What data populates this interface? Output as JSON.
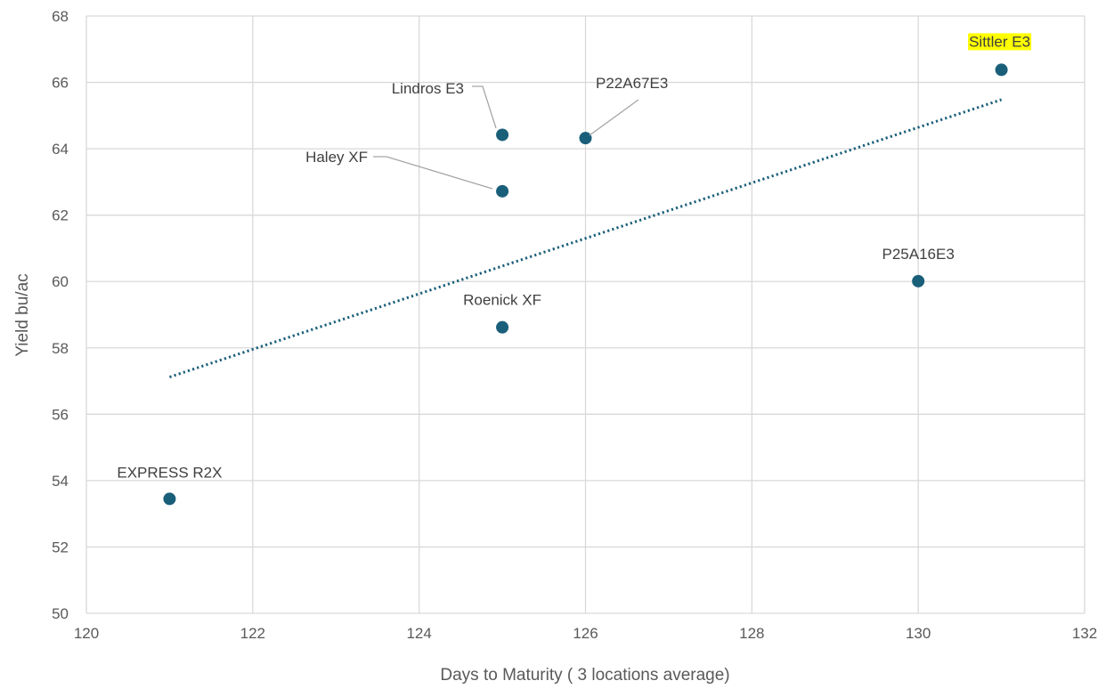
{
  "chart_data": {
    "type": "scatter",
    "title": "",
    "xlabel": "Days to Maturity ( 3 locations average)",
    "ylabel": "Yield bu/ac",
    "xlim": [
      120,
      132
    ],
    "ylim": [
      50,
      68
    ],
    "x_ticks": [
      "120",
      "122",
      "124",
      "126",
      "128",
      "130",
      "132"
    ],
    "y_ticks": [
      "50",
      "52",
      "54",
      "56",
      "58",
      "60",
      "62",
      "64",
      "66",
      "68"
    ],
    "grid": true,
    "series": [
      {
        "color": "#1a5f7a",
        "points": [
          {
            "label": "EXPRESS R2X",
            "x": 121,
            "y": 53.45
          },
          {
            "label": "Roenick XF",
            "x": 125,
            "y": 58.62
          },
          {
            "label": "Haley XF",
            "x": 125,
            "y": 62.72
          },
          {
            "label": "Lindros E3",
            "x": 125,
            "y": 64.42
          },
          {
            "label": "P22A67E3",
            "x": 126,
            "y": 64.32
          },
          {
            "label": "P25A16E3",
            "x": 130,
            "y": 60.01
          },
          {
            "label": "Sittler E3",
            "x": 131,
            "y": 66.38,
            "highlight": "#ffff00"
          }
        ]
      }
    ],
    "trendline": {
      "type": "linear",
      "style": "dotted",
      "color": "#1a5f7a",
      "x_start": 121,
      "x_end": 131,
      "y_start": 57.12,
      "y_end": 65.48
    }
  }
}
